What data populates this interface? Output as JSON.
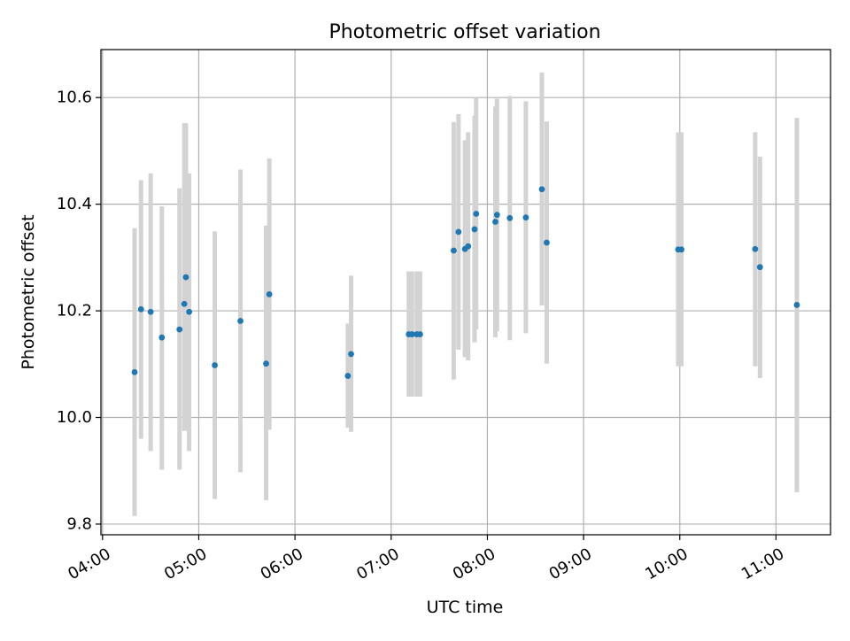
{
  "chart_data": {
    "type": "scatter",
    "title": "Photometric offset variation",
    "xlabel": "UTC time",
    "ylabel": "Photometric offset",
    "xlim": [
      "03:59",
      "11:34"
    ],
    "ylim": [
      9.78,
      10.69
    ],
    "x_ticks": [
      "04:00",
      "05:00",
      "06:00",
      "07:00",
      "08:00",
      "09:00",
      "10:00",
      "11:00"
    ],
    "y_ticks": [
      9.8,
      10.0,
      10.2,
      10.4,
      10.6
    ],
    "y_tick_labels": [
      "9.8",
      "10.0",
      "10.2",
      "10.4",
      "10.6"
    ],
    "grid": true,
    "colors": {
      "point": "#1f77b4",
      "errorbar": "#d3d3d3",
      "grid": "#b0b0b0",
      "axes": "#000000"
    },
    "series": [
      {
        "points": [
          {
            "x": "04:20",
            "y": 10.085,
            "ylow": 9.815,
            "yhigh": 10.355
          },
          {
            "x": "04:24",
            "y": 10.203,
            "ylow": 9.96,
            "yhigh": 10.445
          },
          {
            "x": "04:30",
            "y": 10.198,
            "ylow": 9.937,
            "yhigh": 10.458
          },
          {
            "x": "04:37",
            "y": 10.15,
            "ylow": 9.902,
            "yhigh": 10.396
          },
          {
            "x": "04:48",
            "y": 10.165,
            "ylow": 9.902,
            "yhigh": 10.43
          },
          {
            "x": "04:51",
            "y": 10.213,
            "ylow": 9.975,
            "yhigh": 10.552
          },
          {
            "x": "04:52",
            "y": 10.263,
            "ylow": 9.975,
            "yhigh": 10.552
          },
          {
            "x": "04:54",
            "y": 10.198,
            "ylow": 9.937,
            "yhigh": 10.458
          },
          {
            "x": "05:10",
            "y": 10.098,
            "ylow": 9.847,
            "yhigh": 10.349
          },
          {
            "x": "05:26",
            "y": 10.181,
            "ylow": 9.897,
            "yhigh": 10.465
          },
          {
            "x": "05:42",
            "y": 10.101,
            "ylow": 9.845,
            "yhigh": 10.36
          },
          {
            "x": "05:44",
            "y": 10.231,
            "ylow": 9.977,
            "yhigh": 10.486
          },
          {
            "x": "06:33",
            "y": 10.078,
            "ylow": 9.981,
            "yhigh": 10.176
          },
          {
            "x": "06:35",
            "y": 10.119,
            "ylow": 9.973,
            "yhigh": 10.266
          },
          {
            "x": "07:11",
            "y": 10.156,
            "ylow": 10.039,
            "yhigh": 10.274
          },
          {
            "x": "07:13",
            "y": 10.156,
            "ylow": 10.039,
            "yhigh": 10.274
          },
          {
            "x": "07:16",
            "y": 10.156,
            "ylow": 10.039,
            "yhigh": 10.274
          },
          {
            "x": "07:18",
            "y": 10.156,
            "ylow": 10.039,
            "yhigh": 10.274
          },
          {
            "x": "07:39",
            "y": 10.313,
            "ylow": 10.071,
            "yhigh": 10.554
          },
          {
            "x": "07:42",
            "y": 10.348,
            "ylow": 10.127,
            "yhigh": 10.569
          },
          {
            "x": "07:46",
            "y": 10.316,
            "ylow": 10.113,
            "yhigh": 10.52
          },
          {
            "x": "07:48",
            "y": 10.321,
            "ylow": 10.107,
            "yhigh": 10.535
          },
          {
            "x": "07:52",
            "y": 10.353,
            "ylow": 10.141,
            "yhigh": 10.566
          },
          {
            "x": "07:53",
            "y": 10.382,
            "ylow": 10.165,
            "yhigh": 10.6
          },
          {
            "x": "08:05",
            "y": 10.367,
            "ylow": 10.15,
            "yhigh": 10.583
          },
          {
            "x": "08:06",
            "y": 10.38,
            "ylow": 10.162,
            "yhigh": 10.598
          },
          {
            "x": "08:14",
            "y": 10.374,
            "ylow": 10.145,
            "yhigh": 10.603
          },
          {
            "x": "08:24",
            "y": 10.375,
            "ylow": 10.158,
            "yhigh": 10.593
          },
          {
            "x": "08:34",
            "y": 10.428,
            "ylow": 10.21,
            "yhigh": 10.647
          },
          {
            "x": "08:37",
            "y": 10.328,
            "ylow": 10.101,
            "yhigh": 10.555
          },
          {
            "x": "09:59",
            "y": 10.315,
            "ylow": 10.096,
            "yhigh": 10.535
          },
          {
            "x": "10:01",
            "y": 10.315,
            "ylow": 10.096,
            "yhigh": 10.535
          },
          {
            "x": "10:47",
            "y": 10.316,
            "ylow": 10.096,
            "yhigh": 10.535
          },
          {
            "x": "10:50",
            "y": 10.282,
            "ylow": 10.074,
            "yhigh": 10.489
          },
          {
            "x": "11:13",
            "y": 10.211,
            "ylow": 9.86,
            "yhigh": 10.562
          }
        ]
      }
    ]
  }
}
